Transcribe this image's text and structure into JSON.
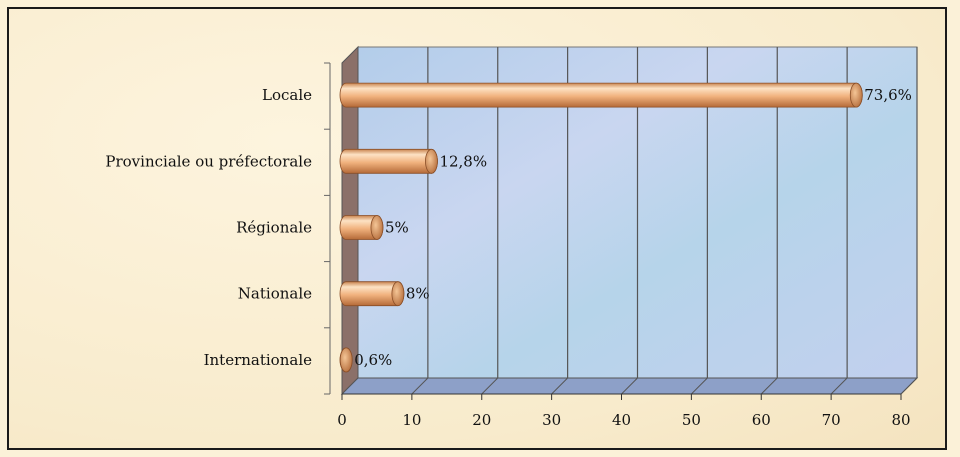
{
  "chart_data": {
    "type": "bar",
    "orientation": "horizontal",
    "categories": [
      "Locale",
      "Provinciale ou préfectorale",
      "Régionale",
      "Nationale",
      "Internationale"
    ],
    "values": [
      73.6,
      12.8,
      5,
      8,
      0.6
    ],
    "value_labels": [
      "73,6%",
      "12,8%",
      "5%",
      "8%",
      "0,6%"
    ],
    "xlim": [
      0,
      80
    ],
    "xticks": [
      "0",
      "10",
      "20",
      "30",
      "40",
      "50",
      "60",
      "70",
      "80"
    ],
    "grid": "vertical",
    "style": "3d-cylinder",
    "colors": {
      "bar_light": "#fde2c4",
      "bar_mid": "#f1b27e",
      "bar_dark": "#c97a45",
      "plot_back": "#b9d3ee",
      "side_wall": "#8b7069",
      "floor": "#8da0c8",
      "gridline": "#555555"
    }
  }
}
